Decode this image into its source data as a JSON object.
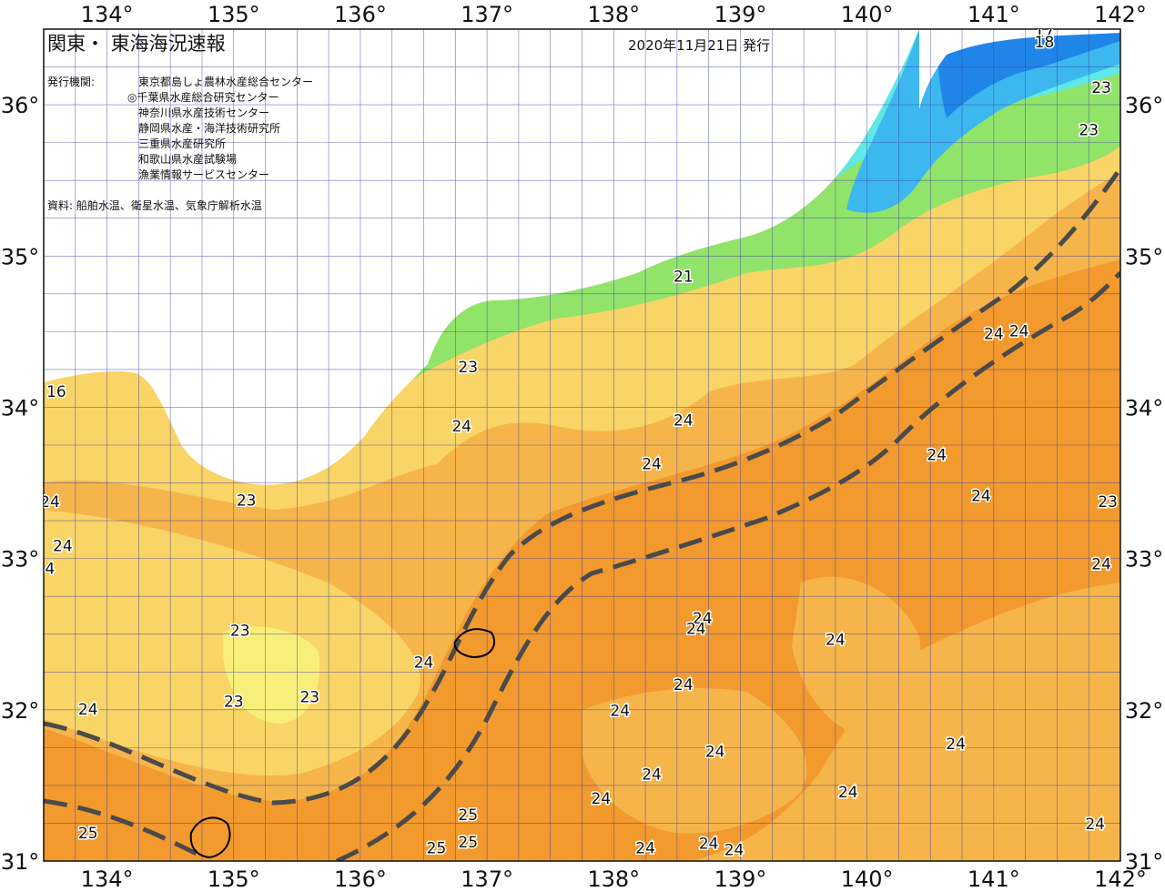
{
  "header": {
    "title": "関東・ 東海海況速報",
    "date": "2020年11月21日 発行",
    "issuer_label": "発行機関:",
    "issuers": [
      "東京都島しょ農林水産総合センター",
      "◎千葉県水産総合研究センター",
      "神奈川県水産技術センター",
      "静岡県水産・海洋技術研究所",
      "三重県水産研究所",
      "和歌山県水産試験場",
      "漁業情報サービスセンター"
    ],
    "source": "資料: 船舶水温、衛星水温、気象庁解析水温"
  },
  "axes": {
    "lon_labels": [
      "134°",
      "135°",
      "136°",
      "137°",
      "138°",
      "139°",
      "140°",
      "141°",
      "142°"
    ],
    "lat_labels": [
      "36°",
      "35°",
      "34°",
      "33°",
      "32°",
      "31°"
    ],
    "lon_range": [
      133.5,
      142
    ],
    "lat_range": [
      31,
      36.5
    ]
  },
  "colors": {
    "temp_25": "#f29a2e",
    "temp_24": "#f6b54a",
    "temp_23": "#f9d466",
    "temp_22": "#f7ef7a",
    "temp_21": "#92e36a",
    "temp_19": "#5fe8e6",
    "temp_17": "#3cb8ef",
    "temp_15": "#1f86e8",
    "land": "#ffffff",
    "kuroshio": "#4a4a4a",
    "grid": "#3a3aa8"
  },
  "temperature_labels": [
    {
      "text": "17",
      "lon": 141.4,
      "lat": 36.45
    },
    {
      "text": "18",
      "lon": 141.4,
      "lat": 36.38
    },
    {
      "text": "23",
      "lon": 141.85,
      "lat": 36.08
    },
    {
      "text": "23",
      "lon": 141.75,
      "lat": 35.8
    },
    {
      "text": "21",
      "lon": 138.55,
      "lat": 34.83
    },
    {
      "text": "23",
      "lon": 136.85,
      "lat": 34.23
    },
    {
      "text": "24",
      "lon": 141.0,
      "lat": 34.45
    },
    {
      "text": "24",
      "lon": 141.2,
      "lat": 34.47
    },
    {
      "text": "24",
      "lon": 138.55,
      "lat": 33.88
    },
    {
      "text": "24",
      "lon": 136.8,
      "lat": 33.84
    },
    {
      "text": "24",
      "lon": 138.3,
      "lat": 33.59
    },
    {
      "text": "24",
      "lon": 140.55,
      "lat": 33.65
    },
    {
      "text": "24",
      "lon": 140.9,
      "lat": 33.38
    },
    {
      "text": "23",
      "lon": 141.9,
      "lat": 33.34
    },
    {
      "text": "23",
      "lon": 135.1,
      "lat": 33.35
    },
    {
      "text": "24",
      "lon": 133.55,
      "lat": 33.34
    },
    {
      "text": "24",
      "lon": 133.65,
      "lat": 33.05
    },
    {
      "text": "4",
      "lon": 133.55,
      "lat": 32.9
    },
    {
      "text": "24",
      "lon": 141.85,
      "lat": 32.93
    },
    {
      "text": "24",
      "lon": 138.7,
      "lat": 32.57
    },
    {
      "text": "24",
      "lon": 138.65,
      "lat": 32.5
    },
    {
      "text": "23",
      "lon": 135.05,
      "lat": 32.49
    },
    {
      "text": "24",
      "lon": 139.75,
      "lat": 32.43
    },
    {
      "text": "24",
      "lon": 136.5,
      "lat": 32.28
    },
    {
      "text": "24",
      "lon": 138.55,
      "lat": 32.13
    },
    {
      "text": "23",
      "lon": 135.0,
      "lat": 32.02
    },
    {
      "text": "23",
      "lon": 135.6,
      "lat": 32.05
    },
    {
      "text": "24",
      "lon": 133.85,
      "lat": 31.97
    },
    {
      "text": "24",
      "lon": 138.05,
      "lat": 31.96
    },
    {
      "text": "24",
      "lon": 140.7,
      "lat": 31.74
    },
    {
      "text": "24",
      "lon": 138.8,
      "lat": 31.69
    },
    {
      "text": "24",
      "lon": 138.3,
      "lat": 31.54
    },
    {
      "text": "24",
      "lon": 139.85,
      "lat": 31.42
    },
    {
      "text": "24",
      "lon": 137.9,
      "lat": 31.38
    },
    {
      "text": "25",
      "lon": 136.85,
      "lat": 31.27
    },
    {
      "text": "24",
      "lon": 141.8,
      "lat": 31.21
    },
    {
      "text": "25",
      "lon": 133.85,
      "lat": 31.15
    },
    {
      "text": "25",
      "lon": 136.85,
      "lat": 31.09
    },
    {
      "text": "25",
      "lon": 136.6,
      "lat": 31.05
    },
    {
      "text": "24",
      "lon": 138.25,
      "lat": 31.05
    },
    {
      "text": "24",
      "lon": 138.75,
      "lat": 31.08
    },
    {
      "text": "24",
      "lon": 138.95,
      "lat": 31.04
    },
    {
      "text": "16",
      "lon": 133.6,
      "lat": 34.07
    }
  ]
}
